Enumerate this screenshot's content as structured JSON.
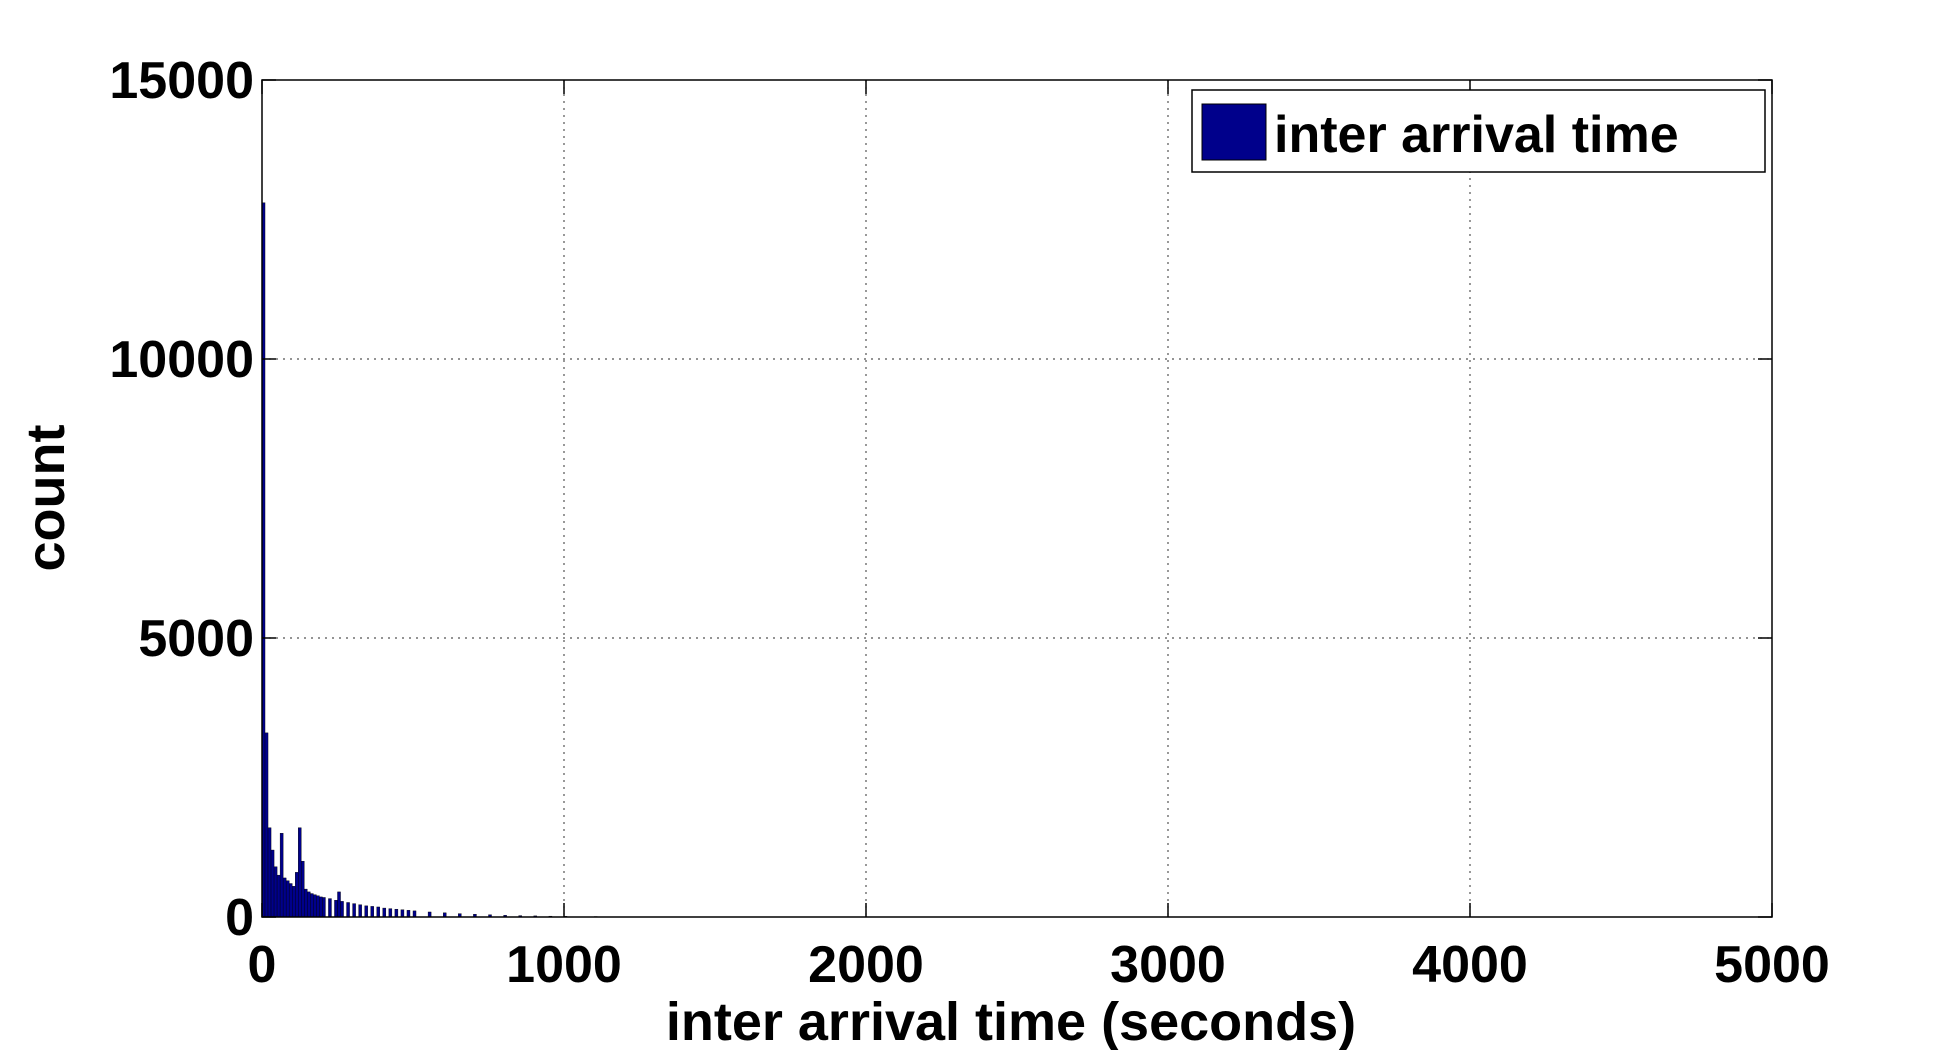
{
  "chart_data": {
    "type": "bar",
    "title": "",
    "xlabel": "inter arrival time (seconds)",
    "ylabel": "count",
    "xlim": [
      0,
      5000
    ],
    "ylim": [
      0,
      15000
    ],
    "x_ticks": [
      "0",
      "1000",
      "2000",
      "3000",
      "4000",
      "5000"
    ],
    "y_ticks": [
      "0",
      "5000",
      "10000",
      "15000"
    ],
    "grid": true,
    "legend_position": "top-right",
    "bar_color": "#00008B",
    "series": [
      {
        "name": "inter arrival time",
        "bin_width": 10,
        "x": [
          0,
          10,
          20,
          30,
          40,
          50,
          60,
          70,
          80,
          90,
          100,
          110,
          120,
          130,
          140,
          150,
          160,
          170,
          180,
          190,
          200,
          220,
          240,
          250,
          260,
          280,
          300,
          320,
          340,
          360,
          380,
          400,
          420,
          440,
          460,
          480,
          500,
          550,
          600,
          650,
          700,
          750,
          800,
          850,
          900,
          950,
          1000,
          1100,
          1200,
          1300,
          1400,
          1500
        ],
        "values": [
          12800,
          3300,
          1600,
          1200,
          900,
          750,
          1500,
          700,
          650,
          600,
          550,
          800,
          1600,
          1000,
          500,
          450,
          420,
          400,
          380,
          360,
          350,
          330,
          300,
          450,
          280,
          260,
          240,
          220,
          200,
          190,
          180,
          160,
          150,
          140,
          130,
          120,
          110,
          90,
          75,
          60,
          50,
          40,
          30,
          25,
          20,
          15,
          12,
          8,
          5,
          4,
          3,
          2
        ]
      }
    ]
  }
}
